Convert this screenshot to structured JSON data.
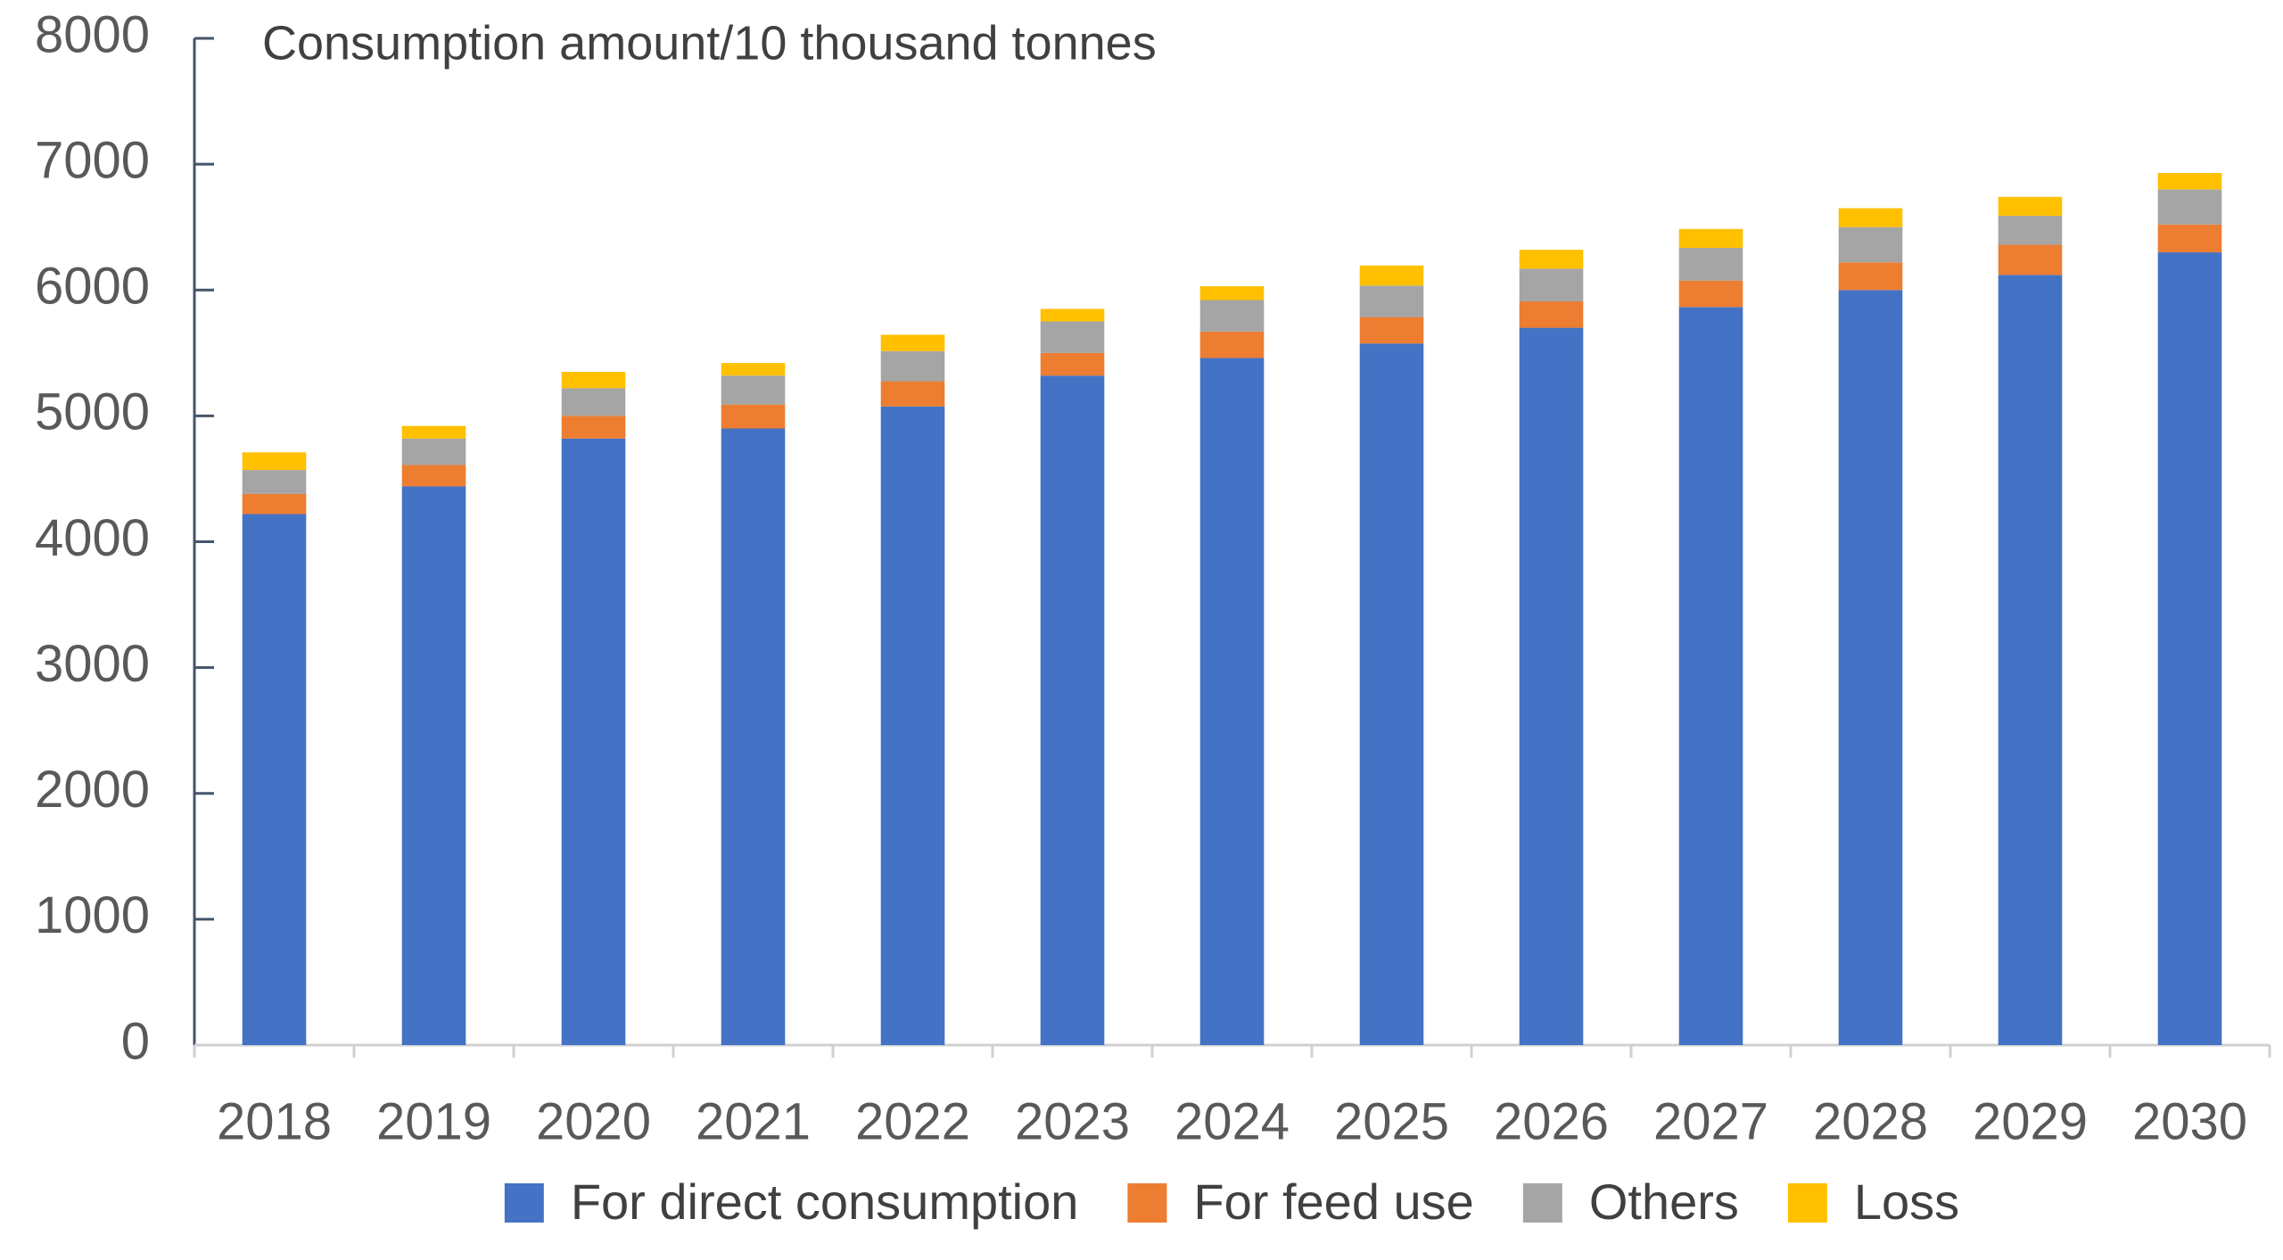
{
  "chart_data": {
    "type": "stacked_bar",
    "y_label": "Consumption amount/10 thousand tonnes",
    "categories": [
      "2018",
      "2019",
      "2020",
      "2021",
      "2022",
      "2023",
      "2024",
      "2025",
      "2026",
      "2027",
      "2028",
      "2029",
      "2030"
    ],
    "series": [
      {
        "name": "For direct consumption",
        "color": "#4472c4",
        "values": [
          4220,
          4440,
          4820,
          4900,
          5075,
          5320,
          5460,
          5575,
          5700,
          5865,
          6000,
          6120,
          6300
        ]
      },
      {
        "name": "For feed use",
        "color": "#ed7d31",
        "values": [
          160,
          170,
          180,
          190,
          200,
          180,
          210,
          210,
          210,
          210,
          220,
          240,
          220
        ]
      },
      {
        "name": "Others",
        "color": "#a5a5a5",
        "values": [
          190,
          210,
          220,
          230,
          240,
          250,
          250,
          250,
          260,
          260,
          280,
          230,
          280
        ]
      },
      {
        "name": "Loss",
        "color": "#ffc000",
        "values": [
          140,
          100,
          130,
          100,
          130,
          100,
          110,
          160,
          150,
          150,
          150,
          150,
          130
        ]
      }
    ],
    "ylim": [
      0,
      8000
    ],
    "yticks": [
      0,
      1000,
      2000,
      3000,
      4000,
      5000,
      6000,
      7000,
      8000
    ],
    "legend": "bottom"
  }
}
